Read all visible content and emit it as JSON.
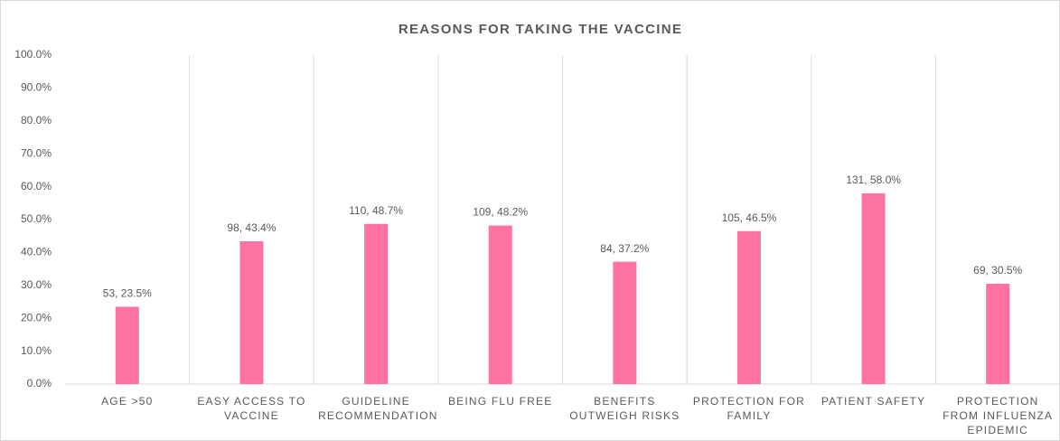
{
  "chart_data": {
    "type": "bar",
    "title": "REASONS FOR TAKING THE VACCINE",
    "categories": [
      "AGE >50",
      "EASY ACCESS TO VACCINE",
      "GUIDELINE RECOMMENDATION",
      "BEING FLU FREE",
      "BENEFITS OUTWEIGH RISKS",
      "PROTECTION FOR FAMILY",
      "PATIENT SAFETY",
      "PROTECTION FROM INFLUENZA EPIDEMIC"
    ],
    "values": [
      23.5,
      43.4,
      48.7,
      48.2,
      37.2,
      46.5,
      58.0,
      30.5
    ],
    "value_labels": [
      "53, 23.5%",
      "98, 43.4%",
      "110, 48.7%",
      "109, 48.2%",
      "84, 37.2%",
      "105, 46.5%",
      "131, 58.0%",
      "69, 30.5%"
    ],
    "color": "#ff73a1",
    "ylim": [
      0,
      100
    ],
    "yticks": [
      {
        "value": 0,
        "label": "0.0%"
      },
      {
        "value": 10,
        "label": "10.0%"
      },
      {
        "value": 20,
        "label": "20.0%"
      },
      {
        "value": 30,
        "label": "30.0%"
      },
      {
        "value": 40,
        "label": "40.0%"
      },
      {
        "value": 50,
        "label": "50.0%"
      },
      {
        "value": 60,
        "label": "60.0%"
      },
      {
        "value": 70,
        "label": "70.0%"
      },
      {
        "value": 80,
        "label": "80.0%"
      },
      {
        "value": 90,
        "label": "90.0%"
      },
      {
        "value": 100,
        "label": "100.0%"
      }
    ]
  }
}
